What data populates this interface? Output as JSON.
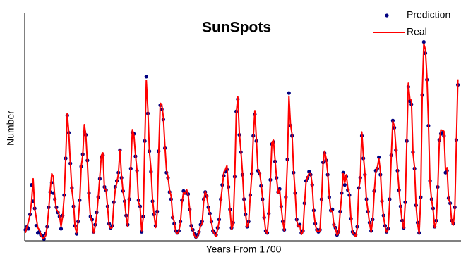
{
  "chart_data": {
    "type": "line",
    "title": "SunSpots",
    "xlabel": "Years From 1700",
    "ylabel": "Number",
    "legend": "upper right",
    "grid": false,
    "xlim": [
      0,
      281
    ],
    "ylim": [
      0,
      200
    ],
    "x": [
      0,
      1,
      2,
      3,
      4,
      5,
      6,
      7,
      8,
      9,
      10,
      11,
      12,
      13,
      14,
      15,
      16,
      17,
      18,
      19,
      20,
      21,
      22,
      23,
      24,
      25,
      26,
      27,
      28,
      29,
      30,
      31,
      32,
      33,
      34,
      35,
      36,
      37,
      38,
      39,
      40,
      41,
      42,
      43,
      44,
      45,
      46,
      47,
      48,
      49,
      50,
      51,
      52,
      53,
      54,
      55,
      56,
      57,
      58,
      59,
      60,
      61,
      62,
      63,
      64,
      65,
      66,
      67,
      68,
      69,
      70,
      71,
      72,
      73,
      74,
      75,
      76,
      77,
      78,
      79,
      80,
      81,
      82,
      83,
      84,
      85,
      86,
      87,
      88,
      89,
      90,
      91,
      92,
      93,
      94,
      95,
      96,
      97,
      98,
      99,
      100,
      101,
      102,
      103,
      104,
      105,
      106,
      107,
      108,
      109,
      110,
      111,
      112,
      113,
      114,
      115,
      116,
      117,
      118,
      119,
      120,
      121,
      122,
      123,
      124,
      125,
      126,
      127,
      128,
      129,
      130,
      131,
      132,
      133,
      134,
      135,
      136,
      137,
      138,
      139,
      140,
      141,
      142,
      143,
      144,
      145,
      146,
      147,
      148,
      149,
      150,
      151,
      152,
      153,
      154,
      155,
      156,
      157,
      158,
      159,
      160,
      161,
      162,
      163,
      164,
      165,
      166,
      167,
      168,
      169,
      170,
      171,
      172,
      173,
      174,
      175,
      176,
      177,
      178,
      179,
      180,
      181,
      182,
      183,
      184,
      185,
      186,
      187,
      188,
      189,
      190,
      191,
      192,
      193,
      194,
      195,
      196,
      197,
      198,
      199,
      200,
      201,
      202,
      203,
      204,
      205,
      206,
      207,
      208,
      209,
      210,
      211,
      212,
      213,
      214,
      215,
      216,
      217,
      218,
      219,
      220,
      221,
      222,
      223,
      224,
      225,
      226,
      227,
      228,
      229,
      230,
      231,
      232,
      233,
      234,
      235,
      236,
      237,
      238,
      239,
      240,
      241,
      242,
      243,
      244,
      245,
      246,
      247,
      248,
      249,
      250,
      251,
      252,
      253,
      254,
      255,
      256,
      257,
      258,
      259,
      260,
      261,
      262,
      263,
      264,
      265,
      266,
      267,
      268,
      269,
      270,
      271,
      272,
      273,
      274,
      275,
      276,
      277,
      278,
      279
    ],
    "series": [
      {
        "name": "Prediction",
        "color": "#000080",
        "style": "dots",
        "values": [
          8,
          11,
          9,
          23,
          52,
          36,
          29,
          12,
          5,
          6,
          3,
          2,
          -1,
          4,
          11,
          30,
          45,
          54,
          44,
          38,
          30,
          25,
          21,
          9,
          22,
          42,
          78,
          120,
          103,
          73,
          49,
          31,
          12,
          4,
          16,
          37,
          70,
          82,
          104,
          101,
          76,
          44,
          21,
          18,
          6,
          13,
          25,
          40,
          58,
          79,
          81,
          50,
          47,
          31,
          14,
          10,
          12,
          35,
          50,
          56,
          64,
          86,
          59,
          46,
          36,
          22,
          13,
          38,
          68,
          103,
          102,
          80,
          66,
          37,
          31,
          6,
          21,
          95,
          158,
          122,
          85,
          65,
          36,
          23,
          12,
          26,
          85,
          130,
          126,
          116,
          88,
          64,
          59,
          45,
          38,
          20,
          14,
          7,
          5,
          7,
          16,
          37,
          46,
          44,
          45,
          43,
          28,
          12,
          8,
          4,
          1,
          3,
          6,
          13,
          16,
          38,
          45,
          41,
          30,
          24,
          16,
          7,
          5,
          3,
          10,
          18,
          38,
          52,
          61,
          65,
          67,
          50,
          28,
          10,
          15,
          60,
          124,
          136,
          101,
          84,
          62,
          38,
          23,
          11,
          16,
          42,
          63,
          100,
          121,
          95,
          66,
          63,
          51,
          38,
          20,
          7,
          5,
          24,
          57,
          92,
          94,
          75,
          59,
          45,
          48,
          31,
          16,
          8,
          40,
          77,
          142,
          110,
          100,
          64,
          44,
          18,
          12,
          13,
          5,
          7,
          34,
          56,
          59,
          65,
          62,
          52,
          27,
          14,
          8,
          6,
          8,
          38,
          74,
          83,
          76,
          62,
          40,
          27,
          28,
          13,
          10,
          3,
          6,
          26,
          44,
          64,
          52,
          60,
          47,
          42,
          19,
          6,
          4,
          3,
          11,
          49,
          59,
          100,
          78,
          62,
          38,
          26,
          15,
          7,
          18,
          46,
          66,
          68,
          79,
          62,
          36,
          22,
          12,
          6,
          9,
          38,
          81,
          115,
          108,
          86,
          66,
          47,
          31,
          17,
          10,
          35,
          95,
          148,
          134,
          131,
          84,
          68,
          32,
          15,
          5,
          40,
          140,
          192,
          181,
          155,
          110,
          56,
          38,
          29,
          11,
          17,
          50,
          96,
          102,
          103,
          100,
          64,
          66,
          39,
          34,
          17,
          14,
          30,
          96,
          150
        ]
      },
      {
        "name": "Real",
        "color": "#ff0000",
        "style": "line",
        "values": [
          5,
          11,
          16,
          23,
          36,
          58,
          29,
          20,
          10,
          8,
          3,
          0,
          0,
          2,
          11,
          27,
          47,
          63,
          60,
          39,
          28,
          26,
          22,
          11,
          21,
          40,
          78,
          122,
          103,
          73,
          47,
          35,
          11,
          5,
          16,
          34,
          70,
          81,
          111,
          101,
          73,
          40,
          20,
          16,
          5,
          11,
          22,
          40,
          60,
          80.9,
          83.4,
          47.7,
          47.8,
          30.7,
          12.2,
          9.6,
          10.2,
          32.4,
          47.6,
          54,
          62.9,
          85.9,
          61.2,
          45.1,
          36.4,
          20.9,
          11.4,
          37.8,
          69.8,
          106.1,
          100.8,
          81.6,
          66.5,
          34.8,
          30.6,
          7,
          19.8,
          92.5,
          154.4,
          125.9,
          84.8,
          68.1,
          38.5,
          22.8,
          10.2,
          24.1,
          82.9,
          132,
          130.9,
          118.1,
          89.9,
          66.6,
          60,
          46.9,
          41,
          21.3,
          16,
          6.4,
          4.1,
          6.8,
          14.5,
          34,
          45,
          43.1,
          47.5,
          42.2,
          28.1,
          10.1,
          8.1,
          2.5,
          0,
          1.4,
          5,
          12.2,
          13.9,
          35.4,
          45.8,
          41.1,
          30.1,
          23.9,
          15.6,
          6.6,
          4,
          1.8,
          8.5,
          16.6,
          36.3,
          49.6,
          64.2,
          67,
          70.9,
          47.8,
          27.5,
          8.5,
          13.2,
          56.9,
          121.5,
          138.3,
          103.2,
          85.7,
          64.6,
          36.7,
          24.2,
          10.7,
          15,
          40.1,
          61.5,
          98.5,
          124.7,
          96.3,
          66.6,
          64.5,
          54.1,
          39,
          20.6,
          6.7,
          4.3,
          22.7,
          54.8,
          93.8,
          95.8,
          77.2,
          59.1,
          44,
          47,
          30.5,
          16.3,
          7.3,
          37.6,
          74,
          139,
          111.2,
          101.6,
          66.2,
          44.7,
          17,
          11.3,
          12.4,
          3.4,
          6,
          32.3,
          54.3,
          59.7,
          63.7,
          63.5,
          52.2,
          25.4,
          13.1,
          6.8,
          6.3,
          7.1,
          35.6,
          73,
          85.1,
          78,
          64,
          41.8,
          26.2,
          26.7,
          12.1,
          9.5,
          2.7,
          5,
          24.4,
          42,
          63.5,
          53.8,
          62,
          48.5,
          43.9,
          18.6,
          5.7,
          3.6,
          1.4,
          9.6,
          47.4,
          57.1,
          103.9,
          80.6,
          63.6,
          37.6,
          26.1,
          14.2,
          5.8,
          16.7,
          44.3,
          63.9,
          69,
          77.8,
          64.9,
          35.7,
          21.2,
          11.1,
          5.7,
          8.7,
          36.1,
          79.7,
          114.4,
          109.6,
          88.8,
          67.8,
          47.5,
          30.6,
          16.3,
          9.6,
          33.2,
          92.6,
          151.6,
          136.3,
          134.7,
          83.9,
          69.4,
          31.5,
          13.9,
          4.4,
          38,
          141.7,
          190.2,
          184.8,
          159,
          112.3,
          53.9,
          37.5,
          27.9,
          10.2,
          15.1,
          47,
          93.8,
          105.9,
          105.5,
          104.5,
          66.6,
          68.9,
          38,
          34.5,
          15.5,
          12.6,
          27.5,
          92.5,
          155.4
        ]
      }
    ]
  }
}
